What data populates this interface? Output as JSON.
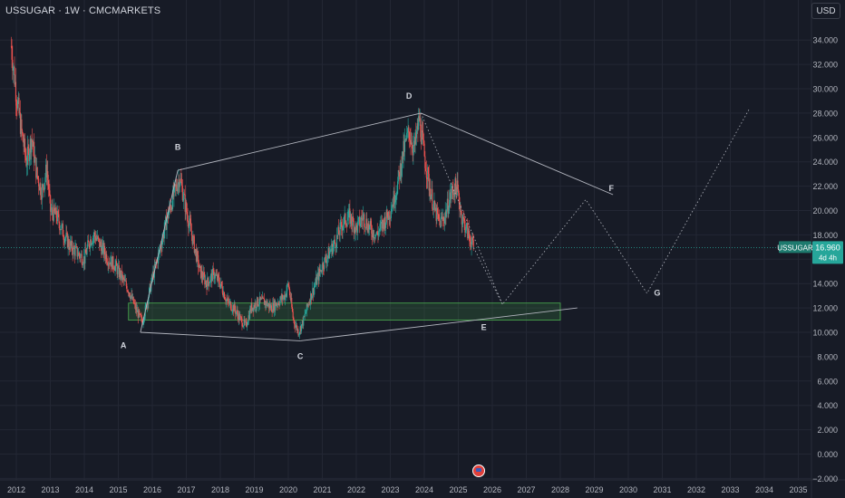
{
  "header": {
    "title": "USSUGAR · 1W · CMCMARKETS",
    "currency_button": "USD"
  },
  "price_tag": {
    "symbol": "USSUGAR",
    "price": "16.960",
    "countdown": "4d 4h",
    "color": "#26a69a",
    "symbol_color": "#1e7a6e"
  },
  "colors": {
    "background": "#171b26",
    "up": "#26a69a",
    "down": "#ef5350",
    "grid": "#232734",
    "drawing": "#b2b5be",
    "zone": "#2e5a3a"
  },
  "chart_data": {
    "type": "candlestick",
    "x_axis": {
      "type": "date",
      "tick_labels": [
        "2012",
        "2013",
        "2014",
        "2015",
        "2016",
        "2017",
        "2018",
        "2019",
        "2020",
        "2021",
        "2022",
        "2023",
        "2024",
        "2025",
        "2026",
        "2027",
        "2028",
        "2029",
        "2030",
        "2031",
        "2032",
        "2033",
        "2034",
        "2035"
      ],
      "range": [
        2011.85,
        2035.0
      ]
    },
    "y_axis": {
      "tick_labels": [
        "34.000",
        "32.000",
        "30.000",
        "28.000",
        "26.000",
        "24.000",
        "22.000",
        "20.000",
        "18.000",
        "16.000",
        "14.000",
        "12.000",
        "10.000",
        "8.000",
        "6.000",
        "4.000",
        "2.000",
        "0.000",
        "−2.000"
      ],
      "ticks": [
        34,
        32,
        30,
        28,
        26,
        24,
        22,
        20,
        18,
        16,
        14,
        12,
        10,
        8,
        6,
        4,
        2,
        0,
        -2
      ],
      "range": [
        -2.5,
        35.5
      ],
      "position": "right"
    },
    "grid": true,
    "series_path_approx": [
      [
        2011.85,
        33.5
      ],
      [
        2012.0,
        29.5
      ],
      [
        2012.15,
        26.5
      ],
      [
        2012.3,
        24.0
      ],
      [
        2012.45,
        26.0
      ],
      [
        2012.6,
        23.0
      ],
      [
        2012.75,
        21.5
      ],
      [
        2012.9,
        23.5
      ],
      [
        2013.0,
        20.0
      ],
      [
        2013.2,
        19.5
      ],
      [
        2013.4,
        18.0
      ],
      [
        2013.6,
        17.0
      ],
      [
        2013.8,
        16.5
      ],
      [
        2014.0,
        16.0
      ],
      [
        2014.15,
        17.5
      ],
      [
        2014.3,
        18.0
      ],
      [
        2014.5,
        17.0
      ],
      [
        2014.7,
        16.0
      ],
      [
        2014.9,
        15.5
      ],
      [
        2015.1,
        14.5
      ],
      [
        2015.3,
        13.5
      ],
      [
        2015.5,
        12.0
      ],
      [
        2015.7,
        10.8
      ],
      [
        2015.85,
        12.5
      ],
      [
        2016.0,
        14.5
      ],
      [
        2016.2,
        16.5
      ],
      [
        2016.4,
        19.0
      ],
      [
        2016.6,
        21.0
      ],
      [
        2016.8,
        22.8
      ],
      [
        2017.0,
        20.0
      ],
      [
        2017.2,
        17.5
      ],
      [
        2017.4,
        15.0
      ],
      [
        2017.6,
        14.0
      ],
      [
        2017.8,
        14.8
      ],
      [
        2018.0,
        14.0
      ],
      [
        2018.2,
        12.5
      ],
      [
        2018.4,
        12.0
      ],
      [
        2018.6,
        11.0
      ],
      [
        2018.75,
        10.5
      ],
      [
        2018.9,
        12.0
      ],
      [
        2019.1,
        12.5
      ],
      [
        2019.3,
        12.5
      ],
      [
        2019.5,
        12.0
      ],
      [
        2019.7,
        12.5
      ],
      [
        2019.9,
        13.0
      ],
      [
        2020.0,
        14.0
      ],
      [
        2020.15,
        11.0
      ],
      [
        2020.3,
        10.0
      ],
      [
        2020.45,
        11.0
      ],
      [
        2020.6,
        12.5
      ],
      [
        2020.8,
        14.0
      ],
      [
        2021.0,
        15.5
      ],
      [
        2021.2,
        16.5
      ],
      [
        2021.4,
        17.5
      ],
      [
        2021.6,
        19.0
      ],
      [
        2021.8,
        19.5
      ],
      [
        2022.0,
        18.5
      ],
      [
        2022.2,
        19.5
      ],
      [
        2022.4,
        18.5
      ],
      [
        2022.6,
        18.0
      ],
      [
        2022.8,
        19.0
      ],
      [
        2023.0,
        20.0
      ],
      [
        2023.2,
        22.0
      ],
      [
        2023.4,
        25.0
      ],
      [
        2023.55,
        26.5
      ],
      [
        2023.7,
        25.0
      ],
      [
        2023.85,
        27.5
      ],
      [
        2024.0,
        24.5
      ],
      [
        2024.15,
        22.0
      ],
      [
        2024.3,
        20.0
      ],
      [
        2024.45,
        19.0
      ],
      [
        2024.6,
        19.5
      ],
      [
        2024.8,
        21.5
      ],
      [
        2024.95,
        22.0
      ],
      [
        2025.1,
        19.5
      ],
      [
        2025.3,
        18.0
      ],
      [
        2025.45,
        16.96
      ]
    ],
    "last_price": 16.96,
    "wave_labels": [
      {
        "label": "A",
        "x": 2015.15,
        "y": 8.7,
        "anchor_x": 2015.65,
        "anchor_y": 10.0
      },
      {
        "label": "B",
        "x": 2016.75,
        "y": 25.0,
        "anchor_x": 2016.75,
        "anchor_y": 23.3
      },
      {
        "label": "C",
        "x": 2020.35,
        "y": 7.8,
        "anchor_x": 2020.35,
        "anchor_y": 9.3
      },
      {
        "label": "D",
        "x": 2023.55,
        "y": 29.2,
        "anchor_x": 2023.9,
        "anchor_y": 28.0
      },
      {
        "label": "E",
        "x": 2025.75,
        "y": 10.2,
        "anchor_x": 2026.3,
        "anchor_y": 12.3
      },
      {
        "label": "F",
        "x": 2029.5,
        "y": 21.6,
        "anchor_x": 2029.55,
        "anchor_y": 21.3
      },
      {
        "label": "G",
        "x": 2030.85,
        "y": 13.0,
        "anchor_x": 2030.55,
        "anchor_y": 13.2
      }
    ],
    "trendlines": [
      {
        "from": [
          2015.65,
          10.0
        ],
        "to": [
          2016.75,
          23.3
        ]
      },
      {
        "from": [
          2016.75,
          23.3
        ],
        "to": [
          2023.9,
          28.0
        ]
      },
      {
        "from": [
          2023.9,
          28.0
        ],
        "to": [
          2029.55,
          21.3
        ]
      },
      {
        "from": [
          2015.65,
          10.0
        ],
        "to": [
          2020.35,
          9.3
        ]
      },
      {
        "from": [
          2020.35,
          9.3
        ],
        "to": [
          2028.5,
          12.0
        ]
      }
    ],
    "projection": [
      [
        2025.45,
        16.96
      ],
      [
        2026.3,
        12.3
      ],
      [
        2028.75,
        20.9
      ],
      [
        2030.55,
        13.2
      ],
      [
        2033.55,
        28.3
      ]
    ],
    "projection_descending_branch": [
      [
        2023.9,
        28.0
      ],
      [
        2026.3,
        12.3
      ]
    ],
    "support_zone": {
      "x_from": 2015.3,
      "x_to": 2028.0,
      "y_from": 11.0,
      "y_to": 12.4
    }
  }
}
